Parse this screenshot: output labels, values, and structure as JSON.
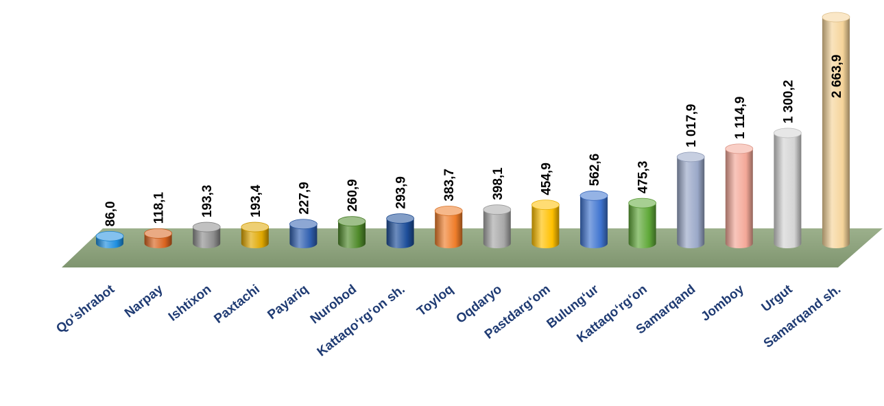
{
  "chart_data": {
    "type": "bar",
    "style": "3d-cylinder",
    "categories": [
      "Qo‘shrabot",
      "Narpay",
      "Ishtixon",
      "Paxtachi",
      "Payariq",
      "Nurobod",
      "Kattaqo‘rg‘on sh.",
      "Toyloq",
      "Oqdaryo",
      "Pastdarg‘om",
      "Bulung‘ur",
      "Kattaqo‘rg‘on",
      "Samarqand",
      "Jomboy",
      "Urgut",
      "Samarqand sh."
    ],
    "values": [
      86.0,
      118.1,
      193.3,
      193.4,
      227.9,
      260.9,
      293.9,
      383.7,
      398.1,
      454.9,
      562.6,
      475.3,
      1017.9,
      1114.9,
      1300.2,
      2663.9
    ],
    "value_labels": [
      "86,0",
      "118,1",
      "193,3",
      "193,4",
      "227,9",
      "260,9",
      "293,9",
      "383,7",
      "398,1",
      "454,9",
      "562,6",
      "475,3",
      "1 017,9",
      "1 114,9",
      "1 300,2",
      "2 663,9"
    ],
    "colors": [
      "#1f8fe0",
      "#d9641f",
      "#8e8e8e",
      "#e0a800",
      "#2f5fb0",
      "#4f8a2a",
      "#1d4e9a",
      "#ef7d2a",
      "#a8a8a8",
      "#ffc000",
      "#3f74d0",
      "#5fa838",
      "#9aa8c8",
      "#f4a898",
      "#d4d4d4",
      "#f5d49a"
    ],
    "label_color": "#1f3b73",
    "floor_color": "#8a9f7a",
    "title": "",
    "xlabel": "",
    "ylabel": "",
    "grid": false,
    "legend": "none"
  }
}
